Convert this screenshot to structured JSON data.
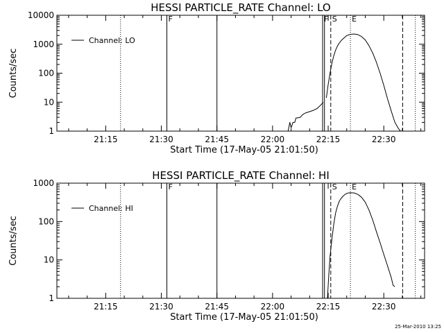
{
  "colors": {
    "background": "#ffffff",
    "ink": "#000000"
  },
  "footer": {
    "timestamp": "25-Mar-2010 13:25"
  },
  "chart_data": [
    {
      "type": "line",
      "title": "HESSI PARTICLE_RATE Channel: LO",
      "xlabel": "Start Time (17-May-05 21:01:50)",
      "ylabel": "Counts/sec",
      "yscale": "log",
      "ylim": [
        1,
        10000
      ],
      "xlim": [
        "21:01:50",
        "22:41:00"
      ],
      "x_ticks": [
        "21:15",
        "21:30",
        "21:45",
        "22:00",
        "22:15",
        "22:30"
      ],
      "y_ticks": [
        "1",
        "10",
        "100",
        "1000",
        "10000"
      ],
      "legend": {
        "position": "top-left",
        "entries": [
          "Channel: LO"
        ]
      },
      "grid": false,
      "series": [
        {
          "name": "Channel: LO",
          "segments": [
            {
              "x": [
                "22:04:12",
                "22:04:40",
                "22:05:00",
                "22:05:30",
                "22:06:00",
                "22:06:18",
                "22:07:30",
                "22:08:00",
                "22:08:30",
                "22:09:00",
                "22:10:00",
                "22:11:00",
                "22:12:00",
                "22:13:00",
                "22:13:42"
              ],
              "y": [
                1,
                2,
                1.3,
                2,
                2,
                2.8,
                3,
                3.6,
                4,
                4.3,
                4.7,
                5.2,
                6,
                8,
                10
              ]
            },
            {
              "x": [
                "22:14:30",
                "22:15:00",
                "22:15:30",
                "22:16:00",
                "22:16:30",
                "22:17:00",
                "22:17:30",
                "22:18:00",
                "22:18:40",
                "22:19:30",
                "22:20:00",
                "22:21:00",
                "22:22:00",
                "22:23:00",
                "22:24:00",
                "22:25:00",
                "22:26:00",
                "22:27:00",
                "22:28:00",
                "22:29:00",
                "22:30:00",
                "22:31:00",
                "22:32:00",
                "22:33:00",
                "22:34:00",
                "22:34:30"
              ],
              "y": [
                14,
                40,
                100,
                220,
                400,
                620,
                870,
                1100,
                1400,
                1750,
                2000,
                2200,
                2250,
                2150,
                1850,
                1400,
                900,
                500,
                240,
                100,
                38,
                13,
                5,
                2,
                1.2,
                1
              ]
            }
          ]
        }
      ],
      "vertical_lines": [
        {
          "x": "21:19:00",
          "style": "dotted",
          "label": ""
        },
        {
          "x": "21:31:30",
          "style": "solid",
          "label": "F"
        },
        {
          "x": "21:45:00",
          "style": "solid",
          "label": ""
        },
        {
          "x": "22:13:30",
          "style": "solid",
          "label": "F"
        },
        {
          "x": "22:14:00",
          "style": "solid",
          "label": ""
        },
        {
          "x": "22:15:42",
          "style": "dashed",
          "label": "S"
        },
        {
          "x": "22:21:00",
          "style": "dotted",
          "label": "E"
        },
        {
          "x": "22:35:06",
          "style": "dashed",
          "label": ""
        },
        {
          "x": "22:38:30",
          "style": "dotted",
          "label": ""
        }
      ]
    },
    {
      "type": "line",
      "title": "HESSI PARTICLE_RATE Channel: HI",
      "xlabel": "Start Time (17-May-05 21:01:50)",
      "ylabel": "Counts/sec",
      "yscale": "log",
      "ylim": [
        1,
        1000
      ],
      "xlim": [
        "21:01:50",
        "22:41:00"
      ],
      "x_ticks": [
        "21:15",
        "21:30",
        "21:45",
        "22:00",
        "22:15",
        "22:30"
      ],
      "y_ticks": [
        "1",
        "10",
        "100",
        "1000"
      ],
      "legend": {
        "position": "top-left",
        "entries": [
          "Channel: HI"
        ]
      },
      "grid": false,
      "series": [
        {
          "name": "Channel: HI",
          "segments": [
            {
              "x": [
                "22:14:48",
                "22:15:10",
                "22:15:30",
                "22:16:00",
                "22:16:30",
                "22:17:00",
                "22:17:30",
                "22:18:00",
                "22:18:30",
                "22:19:00",
                "22:19:40",
                "22:20:10",
                "22:21:00",
                "22:22:00",
                "22:23:00",
                "22:24:00",
                "22:25:00",
                "22:26:00",
                "22:27:00",
                "22:28:00",
                "22:29:00",
                "22:30:00",
                "22:31:00",
                "22:32:00",
                "22:32:30",
                "22:33:00"
              ],
              "y": [
                1,
                4,
                12,
                35,
                85,
                165,
                250,
                340,
                400,
                460,
                520,
                550,
                560,
                555,
                510,
                430,
                320,
                200,
                110,
                55,
                28,
                14,
                7,
                3.5,
                2.2,
                2
              ]
            }
          ]
        }
      ],
      "vertical_lines": [
        {
          "x": "21:19:00",
          "style": "dotted",
          "label": ""
        },
        {
          "x": "21:31:30",
          "style": "solid",
          "label": "F"
        },
        {
          "x": "21:45:00",
          "style": "solid",
          "label": ""
        },
        {
          "x": "22:13:30",
          "style": "solid",
          "label": ""
        },
        {
          "x": "22:14:00",
          "style": "solid",
          "label": ""
        },
        {
          "x": "22:15:42",
          "style": "dashed",
          "label": "S"
        },
        {
          "x": "22:21:00",
          "style": "dotted",
          "label": "E"
        },
        {
          "x": "22:35:06",
          "style": "dashed",
          "label": ""
        },
        {
          "x": "22:38:30",
          "style": "dotted",
          "label": ""
        }
      ]
    }
  ]
}
